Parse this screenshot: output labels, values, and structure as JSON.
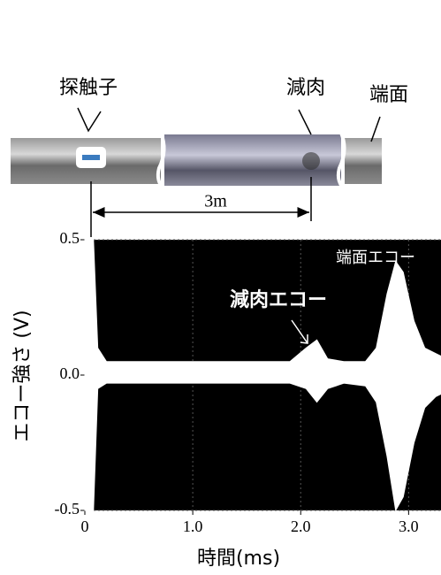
{
  "photo": {
    "labels": [
      "探触子",
      "減肉",
      "端面"
    ],
    "distance": "3m"
  },
  "chart_data": {
    "type": "band",
    "xlabel": "時間(ms)",
    "ylabel": "エコー強さ (V)",
    "annotations": [
      "減肉エコー",
      "端面エコー"
    ],
    "x": [
      0,
      0.08,
      0.12,
      0.2,
      0.5,
      1.0,
      1.5,
      1.9,
      2.05,
      2.15,
      2.25,
      2.4,
      2.6,
      2.7,
      2.8,
      2.88,
      2.95,
      3.05,
      3.15,
      3.25,
      3.3
    ],
    "upper": [
      0.5,
      0.5,
      0.1,
      0.05,
      0.05,
      0.05,
      0.05,
      0.05,
      0.1,
      0.13,
      0.06,
      0.05,
      0.05,
      0.1,
      0.3,
      0.42,
      0.38,
      0.2,
      0.1,
      0.08,
      0.07
    ],
    "lower": [
      -0.5,
      -0.5,
      -0.05,
      -0.03,
      -0.03,
      -0.03,
      -0.03,
      -0.03,
      -0.05,
      -0.1,
      -0.05,
      -0.03,
      -0.04,
      -0.1,
      -0.3,
      -0.5,
      -0.45,
      -0.25,
      -0.12,
      -0.08,
      -0.07
    ],
    "color": "#ffffff",
    "background": "#000000",
    "xlim": [
      0,
      3.3
    ],
    "ylim": [
      -0.5,
      0.5
    ],
    "xticks": [
      0,
      {
        "value": 1,
        "label": "1.0"
      },
      {
        "value": 2,
        "label": "2.0"
      },
      {
        "value": 3,
        "label": "3.0"
      }
    ],
    "yticks": [
      {
        "value": -0.5,
        "label": "-0.5"
      },
      {
        "value": 0,
        "label": "0.0"
      },
      {
        "value": 0.5,
        "label": "0.5"
      }
    ],
    "grid": true
  }
}
